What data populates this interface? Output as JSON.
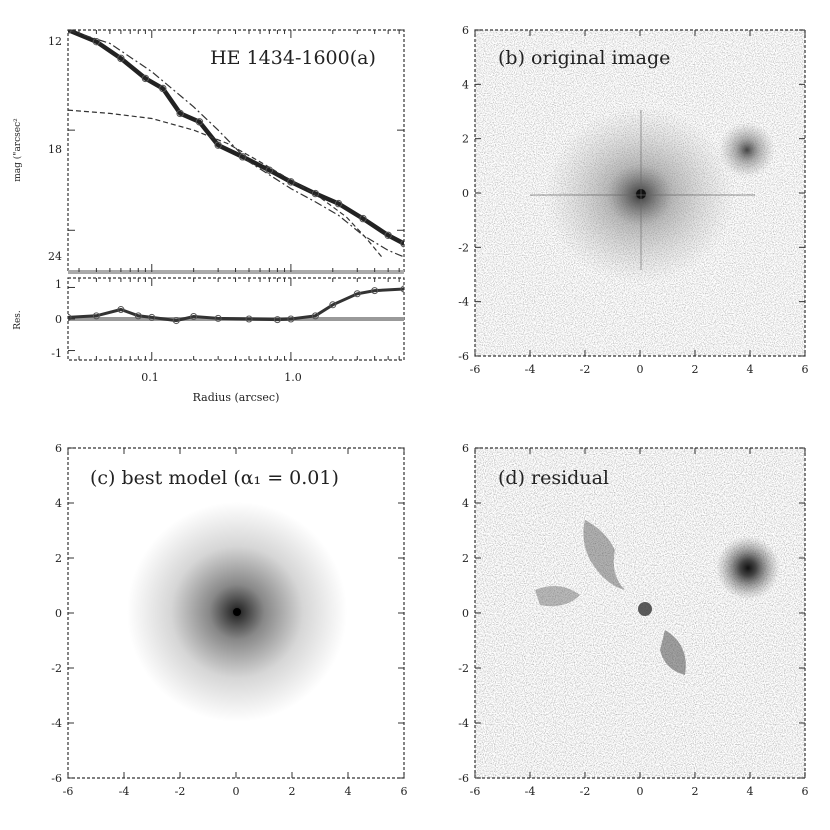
{
  "panels": {
    "a": {
      "title": "HE 1434-1600(a)",
      "ylabel": "mag (\"arcsec²",
      "res_ylabel": "Res.",
      "xlabel": "Radius (arcsec)",
      "ytick_labels": [
        "12",
        "18",
        "24"
      ],
      "res_ytick_labels": [
        "1",
        "0",
        "-1"
      ],
      "xtick_labels": [
        "0.1",
        "1.0"
      ]
    },
    "b": {
      "title": "(b) original image"
    },
    "c": {
      "title": "(c) best model (α₁ = 0.01)"
    },
    "d": {
      "title": "(d) residual"
    },
    "image_tick_labels": [
      "-6",
      "-4",
      "-2",
      "0",
      "2",
      "4",
      "6"
    ]
  },
  "chart_data": [
    {
      "type": "line",
      "title": "HE 1434-1600(a)",
      "xlabel": "Radius (arcsec)",
      "ylabel": "mag (\"arcsec²",
      "xscale": "log",
      "xlim": [
        0.025,
        6.5
      ],
      "ylim": [
        12,
        26.5
      ],
      "y_inverted": true,
      "series": [
        {
          "x": [
            0.025,
            0.04,
            0.06,
            0.09,
            0.12,
            0.16,
            0.22,
            0.3,
            0.45,
            0.7,
            1.0,
            1.5,
            2.2,
            3.3,
            5.0,
            6.5
          ],
          "values": [
            12.0,
            12.7,
            13.7,
            14.9,
            15.5,
            17.0,
            17.5,
            18.9,
            19.6,
            20.4,
            21.1,
            21.8,
            22.4,
            23.3,
            24.3,
            24.8
          ]
        },
        {
          "x": [
            0.025,
            0.05,
            0.1,
            0.2,
            0.35,
            0.6,
            1.0,
            1.6,
            2.5,
            3.5,
            4.5
          ],
          "values": [
            16.8,
            17.0,
            17.3,
            18.0,
            18.8,
            19.9,
            21.0,
            22.0,
            23.2,
            24.5,
            25.6
          ]
        },
        {
          "x": [
            0.025,
            0.05,
            0.1,
            0.2,
            0.3,
            0.5,
            1.0,
            1.5,
            2.2,
            3.3,
            5.0,
            6.5
          ],
          "values": [
            12.0,
            12.8,
            14.5,
            16.6,
            18.0,
            19.9,
            21.5,
            22.3,
            23.1,
            24.3,
            25.2,
            25.6
          ]
        }
      ]
    },
    {
      "type": "line",
      "ylabel": "Res.",
      "xscale": "log",
      "xlim": [
        0.025,
        6.5
      ],
      "ylim": [
        -1.3,
        1.3
      ],
      "series": [
        {
          "x": [
            0.025,
            0.04,
            0.06,
            0.08,
            0.1,
            0.15,
            0.2,
            0.3,
            0.5,
            0.8,
            1.0,
            1.5,
            2.0,
            3.0,
            4.0,
            6.5
          ],
          "values": [
            0.05,
            0.1,
            0.3,
            0.1,
            0.05,
            -0.05,
            0.08,
            0.02,
            0.0,
            -0.02,
            0.0,
            0.1,
            0.45,
            0.8,
            0.9,
            0.95
          ]
        },
        {
          "x": [
            0.025,
            6.5
          ],
          "values": [
            0.0,
            0.0
          ]
        }
      ]
    }
  ]
}
